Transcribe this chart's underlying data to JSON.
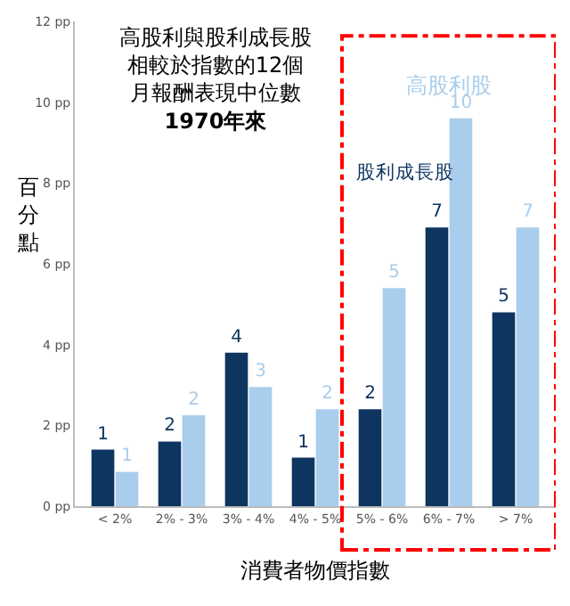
{
  "chart_data": {
    "type": "bar",
    "title": "高股利與股利成長股相較於指數的12個月報酬表現中位數",
    "subtitle": "1970年來",
    "xlabel": "消費者物價指數",
    "ylabel": "百分點",
    "categories": [
      "< 2%",
      "2% - 3%",
      "3% - 4%",
      "4% - 5%",
      "5% - 6%",
      "6% - 7%",
      "> 7%"
    ],
    "series": [
      {
        "name": "股利成長股",
        "color": "#0d3560",
        "values": [
          1.4,
          1.6,
          3.8,
          1.2,
          2.4,
          6.9,
          4.8
        ],
        "value_labels": [
          "1",
          "2",
          "4",
          "1",
          "2",
          "7",
          "5"
        ]
      },
      {
        "name": "高股利股",
        "color": "#a9cdec",
        "values": [
          0.85,
          2.25,
          2.95,
          2.4,
          5.4,
          9.6,
          6.9
        ],
        "value_labels": [
          "1",
          "2",
          "3",
          "2",
          "5",
          "10",
          "7"
        ]
      }
    ],
    "ylim": [
      0,
      12
    ],
    "yticks": [
      {
        "value": 0,
        "label": "0 pp"
      },
      {
        "value": 2,
        "label": "2 pp"
      },
      {
        "value": 4,
        "label": "4 pp"
      },
      {
        "value": 6,
        "label": "6 pp"
      },
      {
        "value": 8,
        "label": "8 pp"
      },
      {
        "value": 10,
        "label": "10 pp"
      },
      {
        "value": 12,
        "label": "12 pp"
      }
    ],
    "legend": false
  }
}
